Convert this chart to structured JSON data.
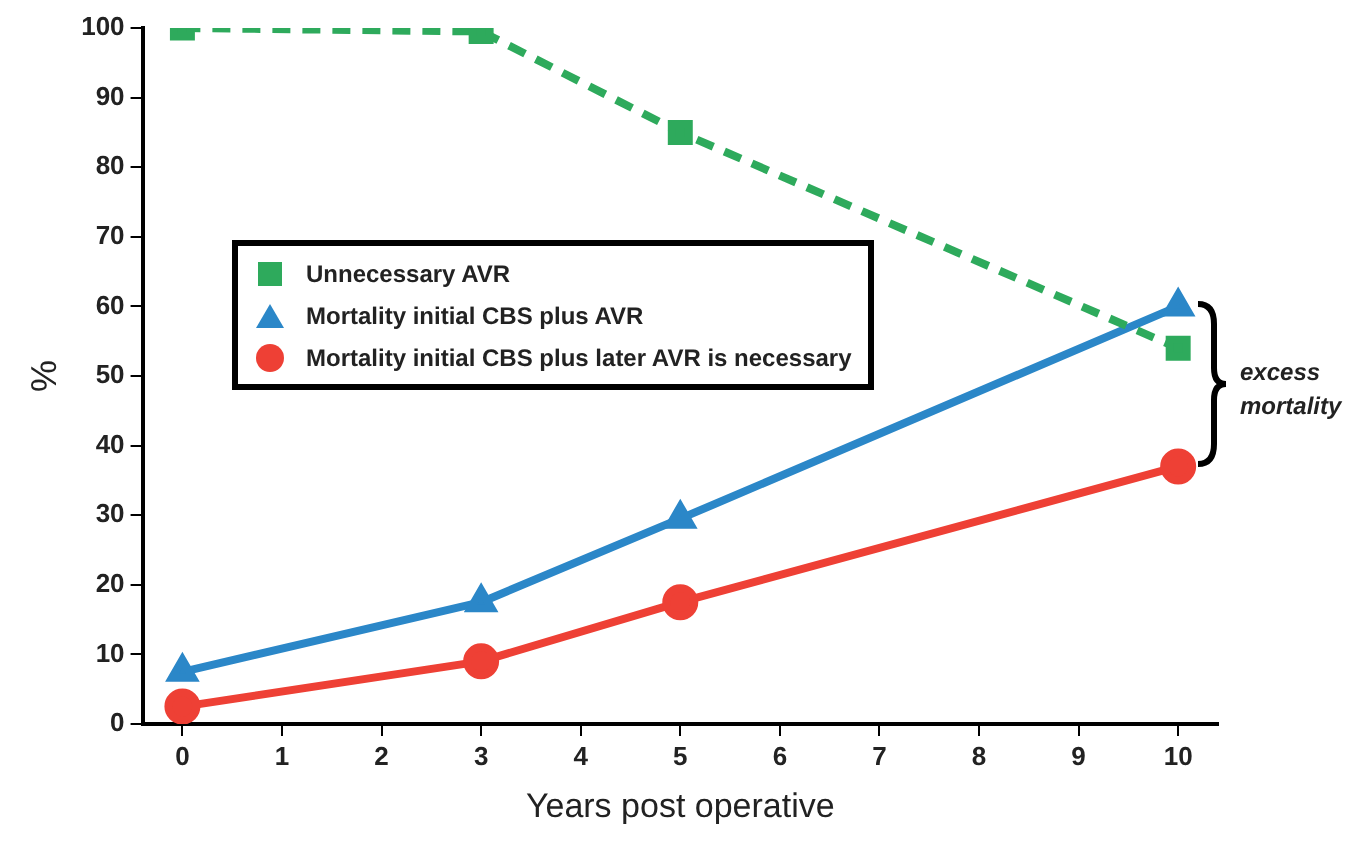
{
  "chart_data": {
    "type": "line",
    "xlabel": "Years post operative",
    "ylabel": "%",
    "xlim": [
      -0.4,
      10.4
    ],
    "xticks": [
      0,
      1,
      2,
      3,
      4,
      5,
      6,
      7,
      8,
      9,
      10
    ],
    "ylim": [
      0,
      100
    ],
    "yticks": [
      0,
      10,
      20,
      30,
      40,
      50,
      60,
      70,
      80,
      90,
      100
    ],
    "x": [
      0,
      3,
      5,
      10
    ],
    "grid": false,
    "legend": "left",
    "series": [
      {
        "name": "Unnecessary AVR",
        "color": "#2eaa5c",
        "marker": "square",
        "line_style": "dashed",
        "values": [
          100,
          99.5,
          85,
          54
        ]
      },
      {
        "name": "Mortality initial CBS plus AVR",
        "color": "#2b87c8",
        "marker": "triangle",
        "line_style": "solid",
        "values": [
          7.5,
          17.5,
          29.5,
          60
        ]
      },
      {
        "name": "Mortality initial CBS plus later AVR is necessary",
        "color": "#ee4035",
        "marker": "circle",
        "line_style": "solid",
        "values": [
          2.5,
          9,
          17.5,
          37
        ]
      }
    ],
    "annotations": [
      "excess mortality"
    ]
  }
}
